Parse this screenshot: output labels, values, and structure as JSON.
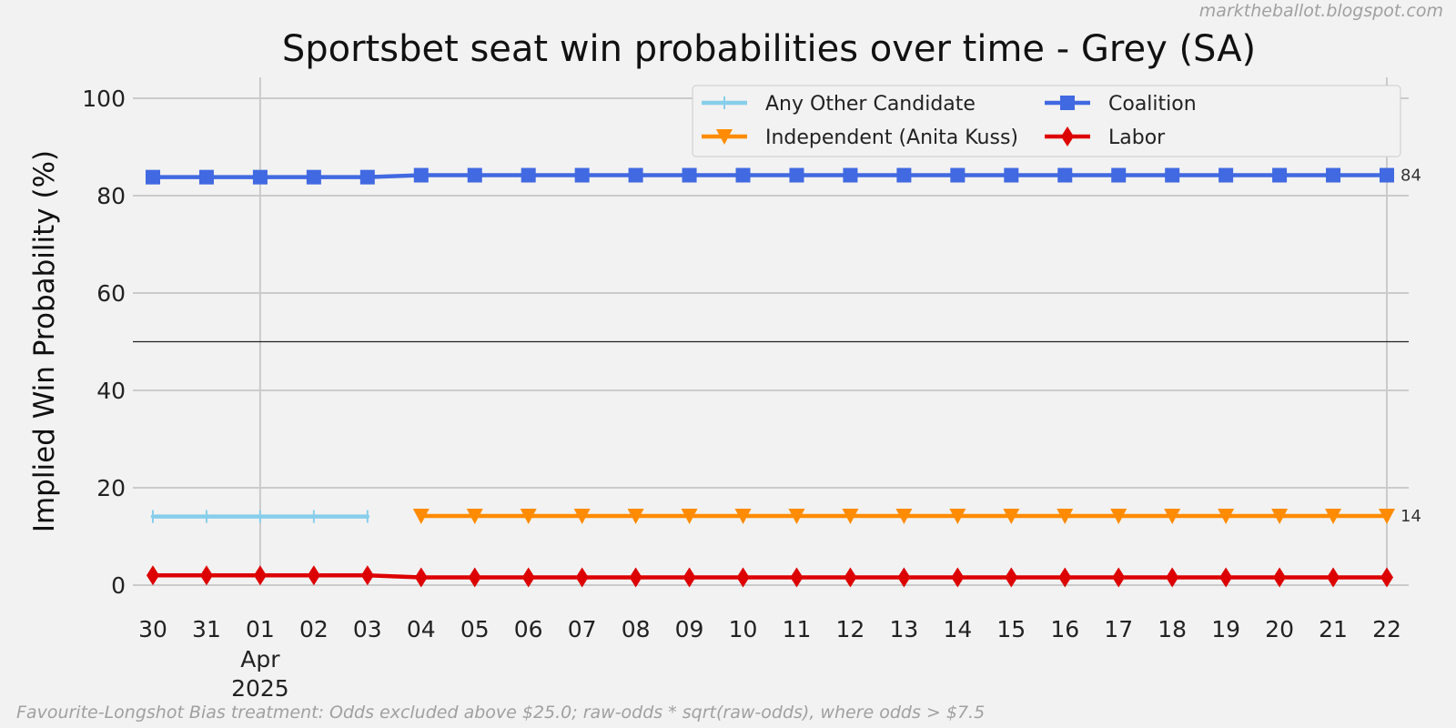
{
  "watermark": "marktheballot.blogspot.com",
  "footer_note": "Favourite-Longshot Bias treatment: Odds excluded above $25.0; raw-odds * sqrt(raw-odds), where odds > $7.5",
  "chart_data": {
    "type": "line",
    "title": "Sportsbet seat win probabilities over time - Grey (SA)",
    "xlabel": "",
    "ylabel": "Implied Win Probability (%)",
    "ylim": [
      0,
      100
    ],
    "yticks": [
      0,
      20,
      40,
      60,
      80,
      100
    ],
    "grid": true,
    "legend_position": "top-right",
    "reference_line_y": 50,
    "x": [
      "2025-03-30",
      "2025-03-31",
      "2025-04-01",
      "2025-04-02",
      "2025-04-03",
      "2025-04-04",
      "2025-04-05",
      "2025-04-06",
      "2025-04-07",
      "2025-04-08",
      "2025-04-09",
      "2025-04-10",
      "2025-04-11",
      "2025-04-12",
      "2025-04-13",
      "2025-04-14",
      "2025-04-15",
      "2025-04-16",
      "2025-04-17",
      "2025-04-18",
      "2025-04-19",
      "2025-04-20",
      "2025-04-21",
      "2025-04-22"
    ],
    "xtick_labels": [
      "30",
      "31",
      "01",
      "02",
      "03",
      "04",
      "05",
      "06",
      "07",
      "08",
      "09",
      "10",
      "11",
      "12",
      "13",
      "14",
      "15",
      "16",
      "17",
      "18",
      "19",
      "20",
      "21",
      "22"
    ],
    "xtick_sublabels": [
      {
        "index": 2,
        "month": "Apr",
        "year": "2025"
      }
    ],
    "series": [
      {
        "name": "Any Other Candidate",
        "color": "#87ceeb",
        "marker": "plus",
        "values": [
          14.1,
          14.1,
          14.1,
          14.1,
          14.1,
          null,
          null,
          null,
          null,
          null,
          null,
          null,
          null,
          null,
          null,
          null,
          null,
          null,
          null,
          null,
          null,
          null,
          null,
          null
        ]
      },
      {
        "name": "Coalition",
        "color": "#4169e1",
        "marker": "square",
        "end_label": "84",
        "values": [
          83.8,
          83.8,
          83.8,
          83.8,
          83.8,
          84.2,
          84.2,
          84.2,
          84.2,
          84.2,
          84.2,
          84.2,
          84.2,
          84.2,
          84.2,
          84.2,
          84.2,
          84.2,
          84.2,
          84.2,
          84.2,
          84.2,
          84.2,
          84.2
        ]
      },
      {
        "name": "Independent (Anita Kuss)",
        "color": "#ff8c00",
        "marker": "triangle-down",
        "end_label": "14",
        "values": [
          null,
          null,
          null,
          null,
          null,
          14.2,
          14.2,
          14.2,
          14.2,
          14.2,
          14.2,
          14.2,
          14.2,
          14.2,
          14.2,
          14.2,
          14.2,
          14.2,
          14.2,
          14.2,
          14.2,
          14.2,
          14.2,
          14.2
        ]
      },
      {
        "name": "Labor",
        "color": "#dd0000",
        "marker": "diamond",
        "values": [
          2.0,
          2.0,
          2.0,
          2.0,
          2.0,
          1.6,
          1.6,
          1.6,
          1.6,
          1.6,
          1.6,
          1.6,
          1.6,
          1.6,
          1.6,
          1.6,
          1.6,
          1.6,
          1.6,
          1.6,
          1.6,
          1.6,
          1.6,
          1.6
        ]
      }
    ]
  }
}
